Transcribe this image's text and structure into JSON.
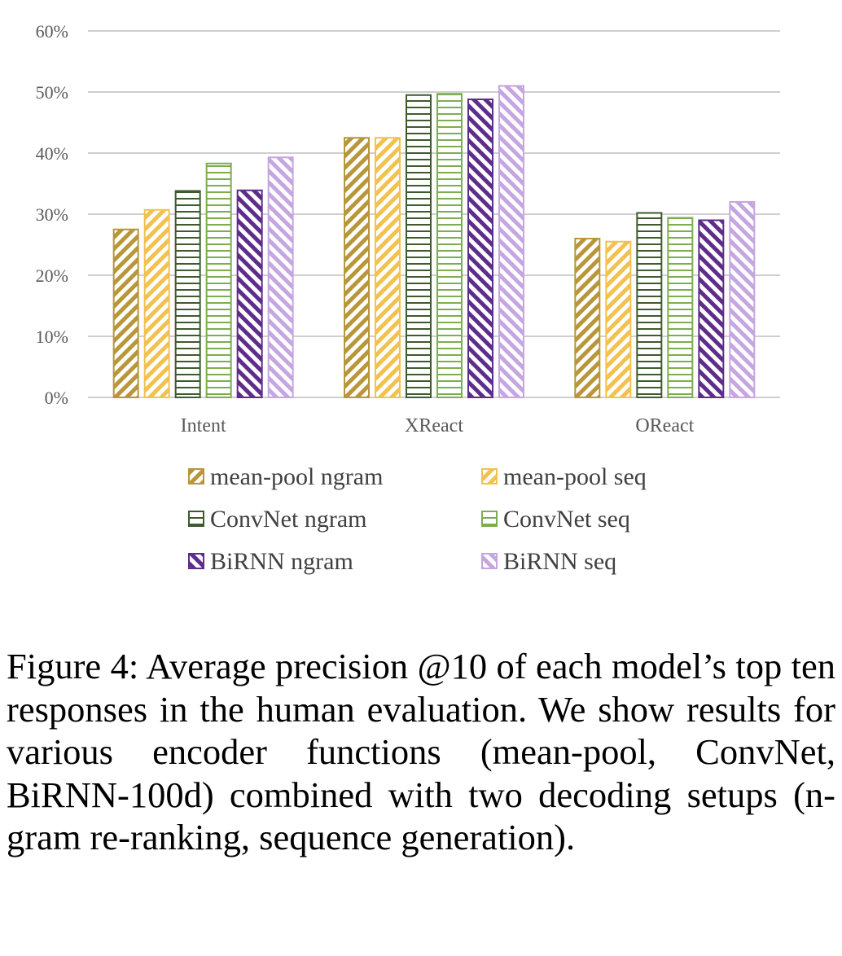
{
  "chart_data": {
    "type": "bar",
    "categories": [
      "Intent",
      "XReact",
      "OReact"
    ],
    "y_tick_labels": [
      "0%",
      "10%",
      "20%",
      "30%",
      "40%",
      "50%",
      "60%"
    ],
    "ylim": [
      0,
      60
    ],
    "y_unit": "percent",
    "grid": "horizontal",
    "legend_position": "bottom",
    "series": [
      {
        "name": "mean-pool ngram",
        "values": [
          27.5,
          42.5,
          26.0
        ],
        "color": "#B8963A",
        "pattern": "diagonal-down"
      },
      {
        "name": "mean-pool seq",
        "values": [
          30.7,
          42.5,
          25.5
        ],
        "color": "#F2C14E",
        "pattern": "diagonal-down"
      },
      {
        "name": "ConvNet ngram",
        "values": [
          33.8,
          49.5,
          30.2
        ],
        "color": "#3F5A2E",
        "pattern": "horizontal"
      },
      {
        "name": "ConvNet seq",
        "values": [
          38.3,
          49.7,
          29.4
        ],
        "color": "#7DAE4E",
        "pattern": "horizontal"
      },
      {
        "name": "BiRNN ngram",
        "values": [
          33.9,
          48.8,
          29.0
        ],
        "color": "#5E2C8A",
        "pattern": "diagonal-up"
      },
      {
        "name": "BiRNN seq",
        "values": [
          39.3,
          51.0,
          32.0
        ],
        "color": "#C5A6E0",
        "pattern": "diagonal-up"
      }
    ]
  },
  "caption": "Figure 4: Average precision @10 of each model’s top ten responses in the human evaluation. We show results for various encoder functions (mean-pool, ConvNet, BiRNN-100d) combined with two decoding setups (n-gram re-ranking, sequence generation)."
}
